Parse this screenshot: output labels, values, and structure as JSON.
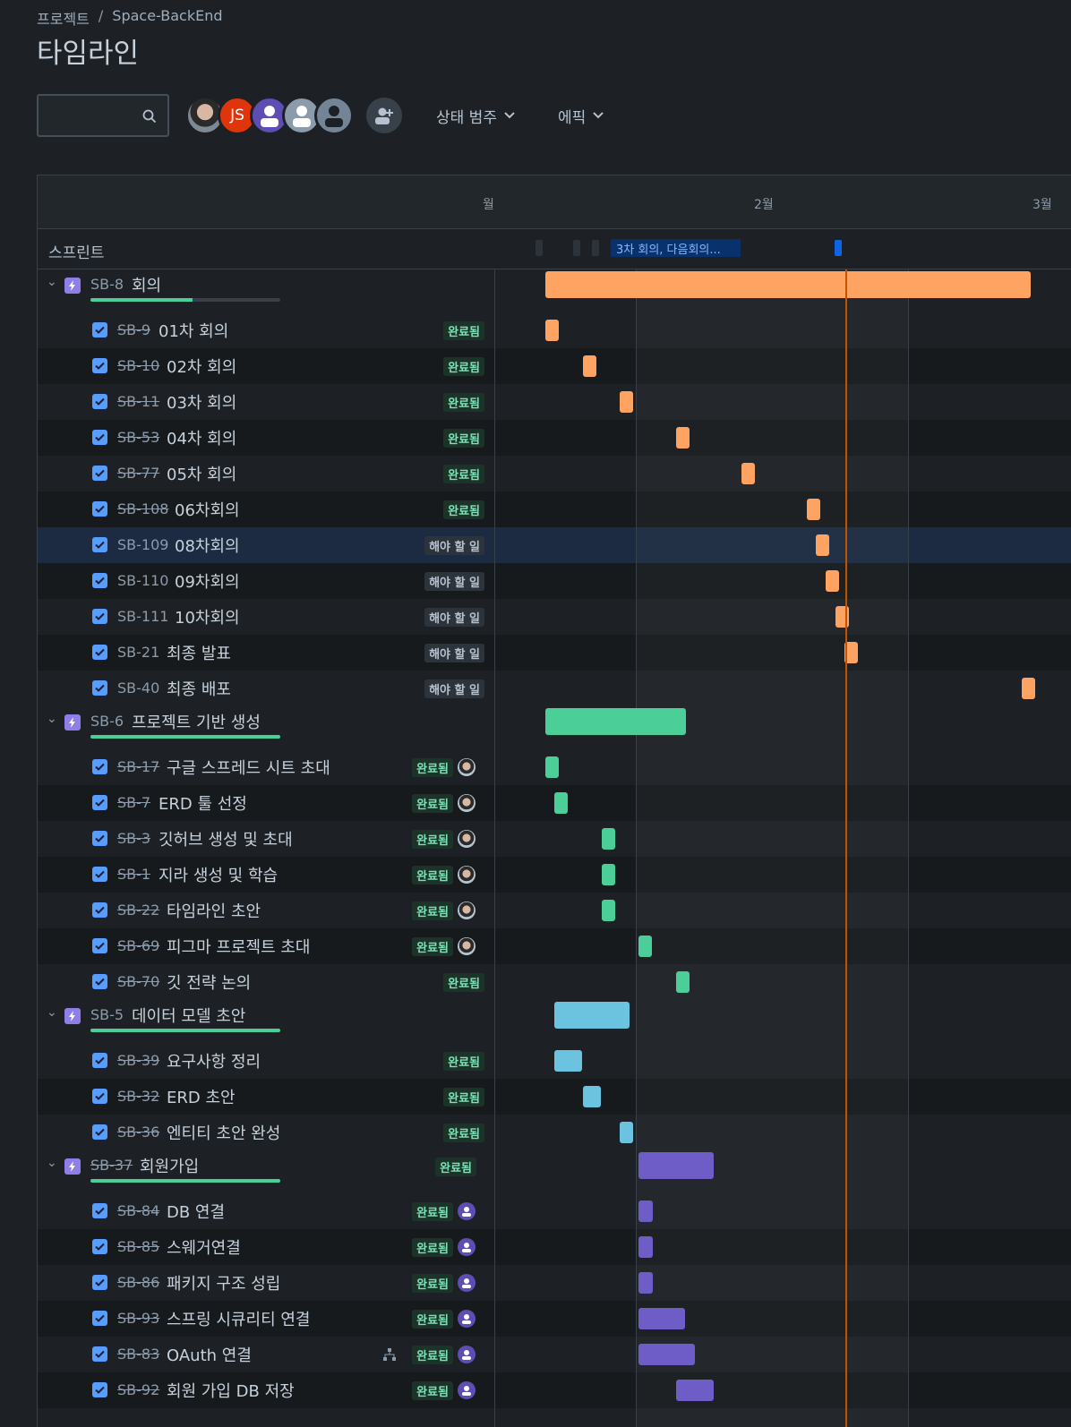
{
  "breadcrumb": {
    "project": "프로젝트",
    "sep": "/",
    "name": "Space-BackEnd"
  },
  "page_title": "타임라인",
  "search": {
    "value": "",
    "placeholder": ""
  },
  "avatars": [
    {
      "kind": "photo"
    },
    {
      "kind": "initials",
      "text": "JS"
    },
    {
      "kind": "default-purple"
    },
    {
      "kind": "default-gray"
    },
    {
      "kind": "default-dark"
    }
  ],
  "filters": {
    "status_category": "상태 범주",
    "epic": "에픽"
  },
  "months": [
    "월",
    "2월",
    "3월"
  ],
  "sprint": {
    "label": "스프린트",
    "active": "3차 회의, 다음회의..."
  },
  "colors": {
    "accent_orange": "#fea362",
    "green": "#4bce97",
    "blue": "#6cc3e0",
    "purple": "#6e5dc6",
    "today": "#c25100"
  },
  "status": {
    "done": "완료됨",
    "todo": "해야 할 일"
  },
  "epics": [
    {
      "key": "SB-8",
      "title": "회의",
      "progress": 0.54,
      "done": false,
      "status": "",
      "children": [
        {
          "key": "SB-9",
          "title": "01차 회의",
          "done": true,
          "status": "완료됨"
        },
        {
          "key": "SB-10",
          "title": "02차 회의",
          "done": true,
          "status": "완료됨"
        },
        {
          "key": "SB-11",
          "title": "03차 회의",
          "done": true,
          "status": "완료됨"
        },
        {
          "key": "SB-53",
          "title": "04차 회의",
          "done": true,
          "status": "완료됨"
        },
        {
          "key": "SB-77",
          "title": "05차 회의",
          "done": true,
          "status": "완료됨"
        },
        {
          "key": "SB-108",
          "title": "06차회의",
          "done": true,
          "status": "완료됨"
        },
        {
          "key": "SB-109",
          "title": "08차회의",
          "done": false,
          "status": "해야 할 일"
        },
        {
          "key": "SB-110",
          "title": "09차회의",
          "done": false,
          "status": "해야 할 일"
        },
        {
          "key": "SB-111",
          "title": "10차회의",
          "done": false,
          "status": "해야 할 일"
        },
        {
          "key": "SB-21",
          "title": "최종 발표",
          "done": false,
          "status": "해야 할 일"
        },
        {
          "key": "SB-40",
          "title": "최종 배포",
          "done": false,
          "status": "해야 할 일"
        }
      ]
    },
    {
      "key": "SB-6",
      "title": "프로젝트 기반 생성",
      "progress": 1.0,
      "done": false,
      "status": "",
      "children": [
        {
          "key": "SB-17",
          "title": "구글 스프레드 시트 초대",
          "done": true,
          "status": "완료됨",
          "assignee": "photo"
        },
        {
          "key": "SB-7",
          "title": "ERD 툴 선정",
          "done": true,
          "status": "완료됨",
          "assignee": "photo"
        },
        {
          "key": "SB-3",
          "title": "깃허브 생성 및 초대",
          "done": true,
          "status": "완료됨",
          "assignee": "photo"
        },
        {
          "key": "SB-1",
          "title": "지라 생성 및 학습",
          "done": true,
          "status": "완료됨",
          "assignee": "photo"
        },
        {
          "key": "SB-22",
          "title": "타임라인 초안",
          "done": true,
          "status": "완료됨",
          "assignee": "photo"
        },
        {
          "key": "SB-69",
          "title": "피그마 프로젝트 초대",
          "done": true,
          "status": "완료됨",
          "assignee": "photo"
        },
        {
          "key": "SB-70",
          "title": "깃 전략 논의",
          "done": true,
          "status": "완료됨"
        }
      ]
    },
    {
      "key": "SB-5",
      "title": "데이터 모델 초안",
      "progress": 1.0,
      "done": false,
      "status": "",
      "children": [
        {
          "key": "SB-39",
          "title": "요구사항 정리",
          "done": true,
          "status": "완료됨"
        },
        {
          "key": "SB-32",
          "title": "ERD 초안",
          "done": true,
          "status": "완료됨"
        },
        {
          "key": "SB-36",
          "title": "엔티티 초안 완성",
          "done": true,
          "status": "완료됨"
        }
      ]
    },
    {
      "key": "SB-37",
      "title": "회원가입",
      "progress": 1.0,
      "done": true,
      "status": "완료됨",
      "children": [
        {
          "key": "SB-84",
          "title": "DB 연결",
          "done": true,
          "status": "완료됨",
          "assignee": "purple"
        },
        {
          "key": "SB-85",
          "title": "스웨거연결",
          "done": true,
          "status": "완료됨",
          "assignee": "purple"
        },
        {
          "key": "SB-86",
          "title": "패키지 구조 성립",
          "done": true,
          "status": "완료됨",
          "assignee": "purple"
        },
        {
          "key": "SB-93",
          "title": "스프링 시큐리티 연결",
          "done": true,
          "status": "완료됨",
          "assignee": "purple"
        },
        {
          "key": "SB-83",
          "title": "OAuth 연결",
          "done": true,
          "status": "완료됨",
          "assignee": "purple",
          "has_children_icon": true
        },
        {
          "key": "SB-92",
          "title": "회원 가입 DB 저장",
          "done": true,
          "status": "완료됨",
          "assignee": "purple"
        }
      ]
    }
  ]
}
